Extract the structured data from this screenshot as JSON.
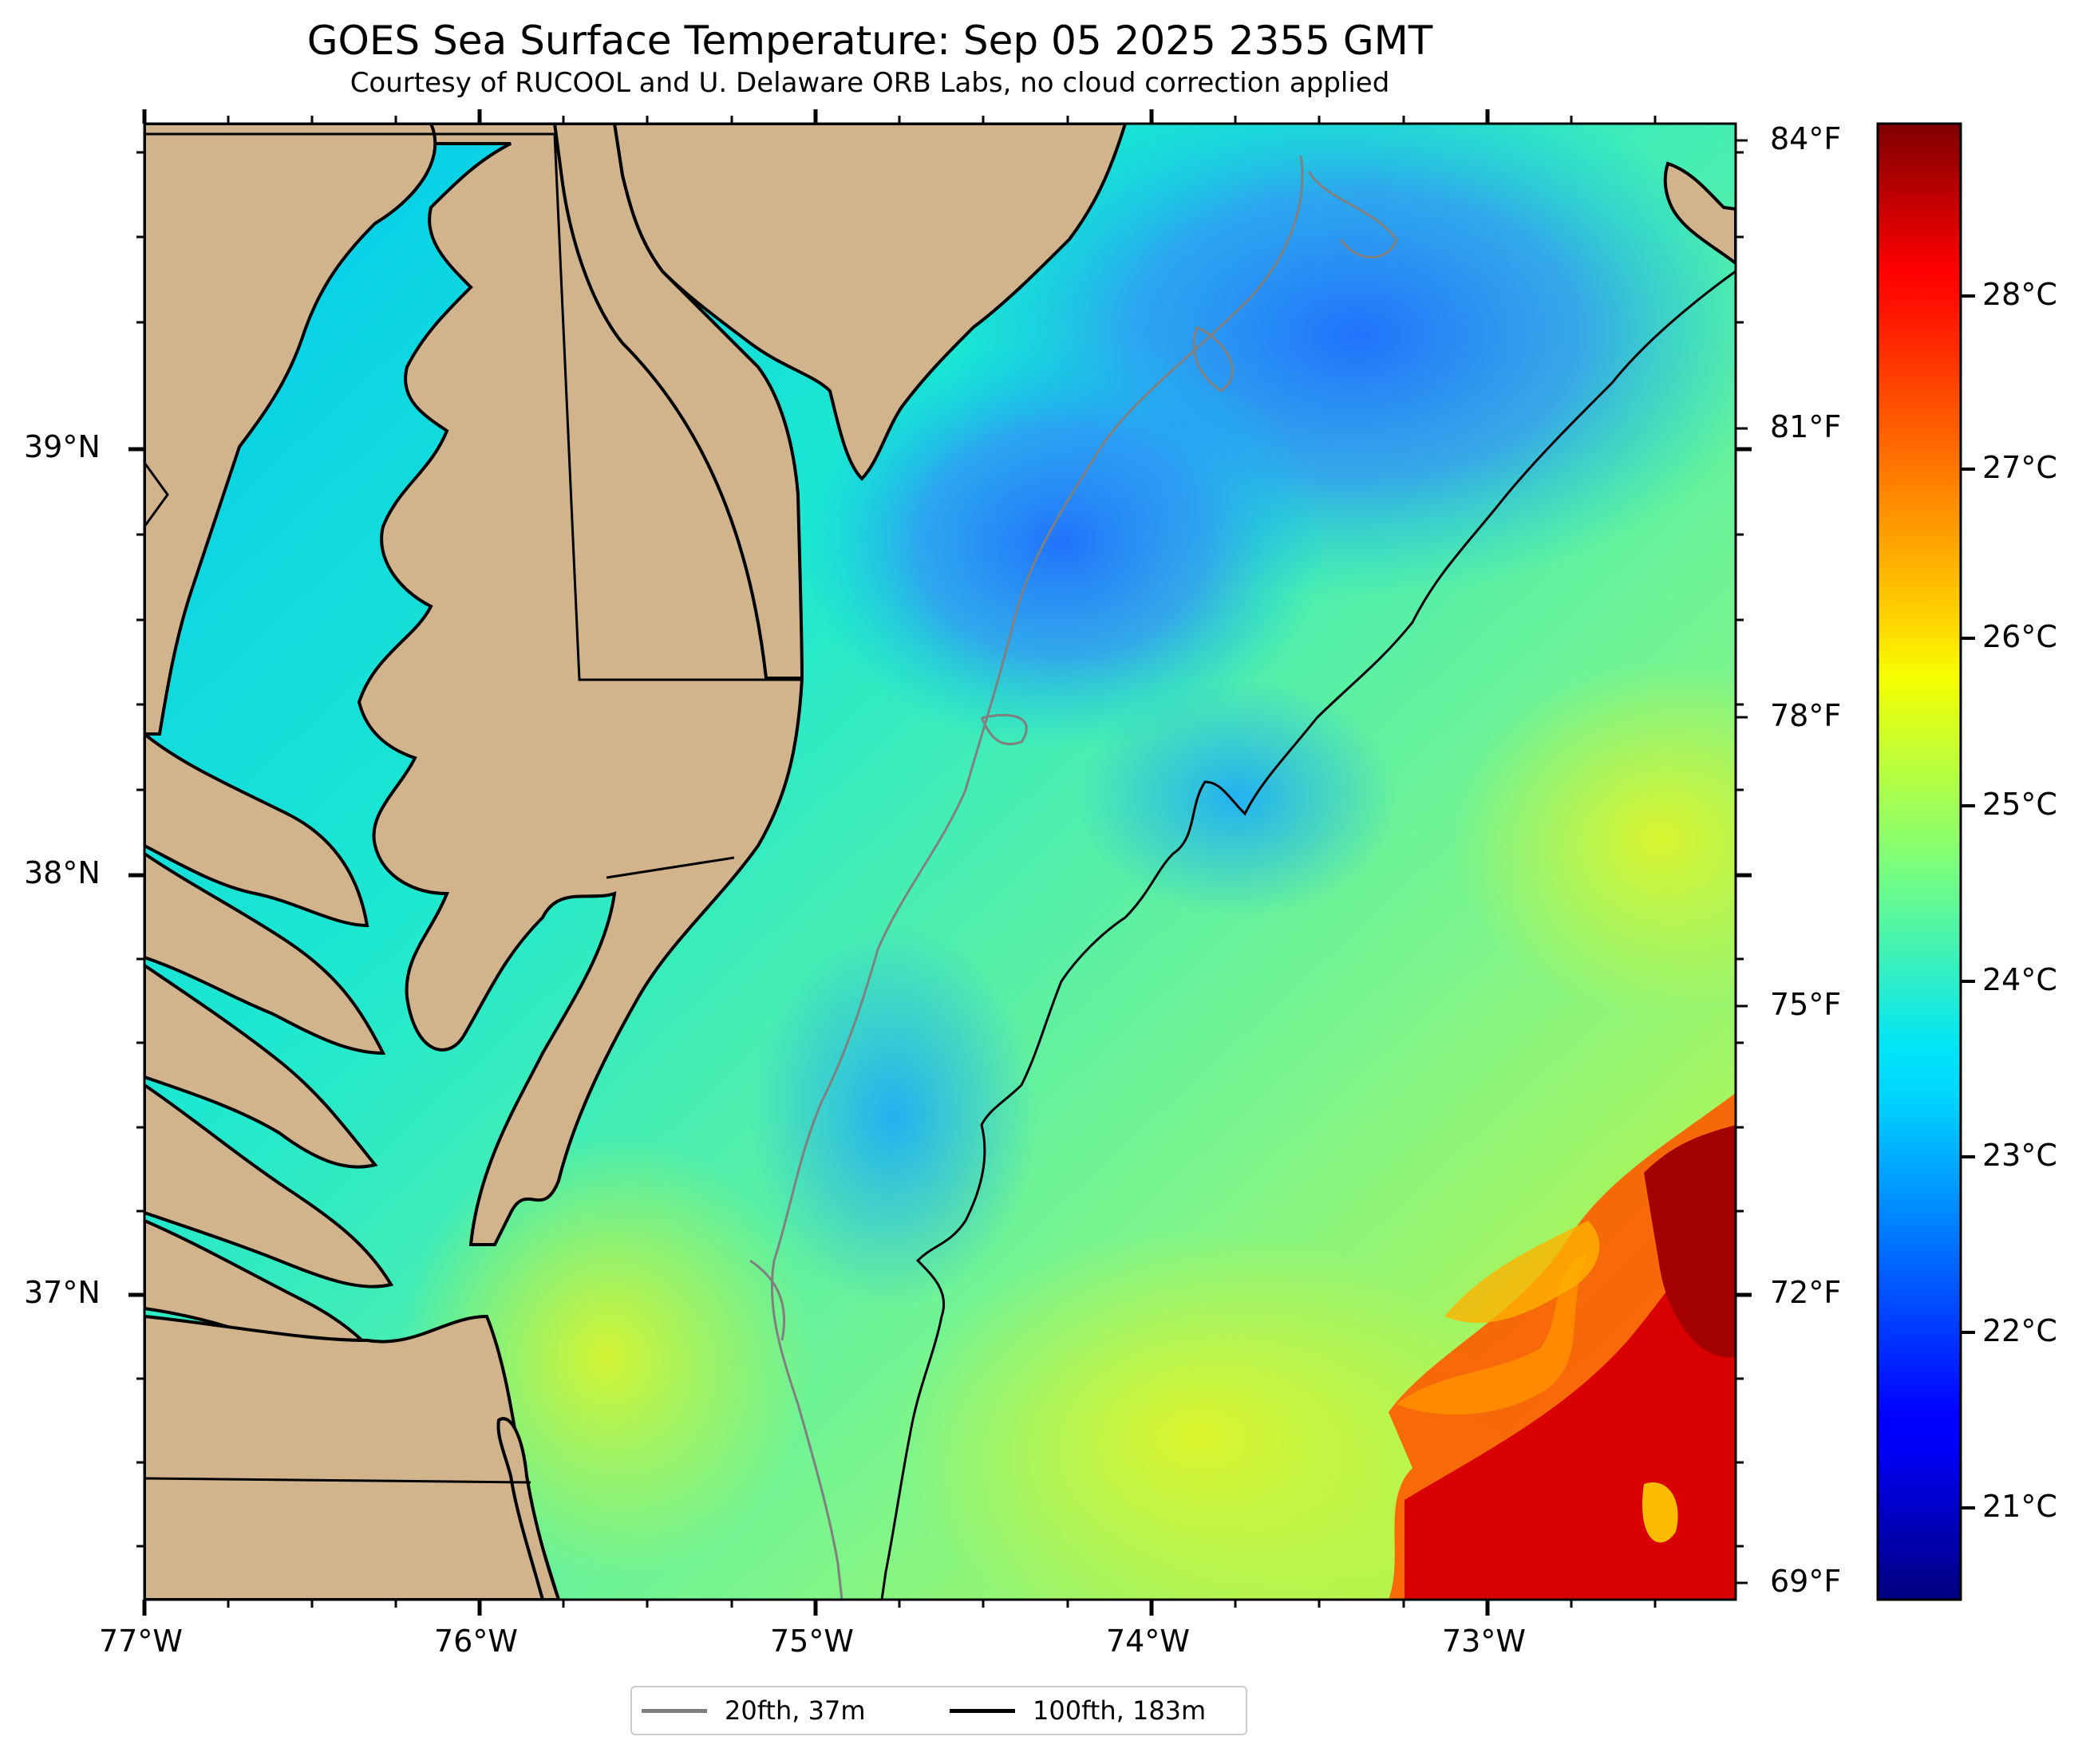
{
  "title": "GOES Sea Surface Temperature: Sep 05 2025 2355 GMT",
  "subtitle": "Courtesy of RUCOOL and U. Delaware ORB Labs, no cloud correction applied",
  "map": {
    "lon_range": [
      -77.0,
      -72.25
    ],
    "lat_range": [
      36.3,
      39.75
    ],
    "lon_ticks": [
      "77°W",
      "76°W",
      "75°W",
      "74°W",
      "73°W"
    ],
    "lat_ticks": [
      "39°N",
      "38°N",
      "37°N"
    ],
    "land_color": "#d2b48c",
    "no_data_color": "#ffffff",
    "colormap": "jet",
    "warm_eddy_location": "lower-right"
  },
  "colorbar": {
    "c_min": 20.6,
    "c_max": 29.0,
    "celsius_ticks": [
      "21°C",
      "22°C",
      "23°C",
      "24°C",
      "25°C",
      "26°C",
      "27°C",
      "28°C"
    ],
    "fahrenheit_ticks": [
      "69°F",
      "72°F",
      "75°F",
      "78°F",
      "81°F",
      "84°F"
    ]
  },
  "legend": {
    "placement": "bottom-center",
    "items": [
      {
        "label": "20fth, 37m",
        "color": "#808080"
      },
      {
        "label": "100fth, 183m",
        "color": "#000000"
      }
    ]
  }
}
